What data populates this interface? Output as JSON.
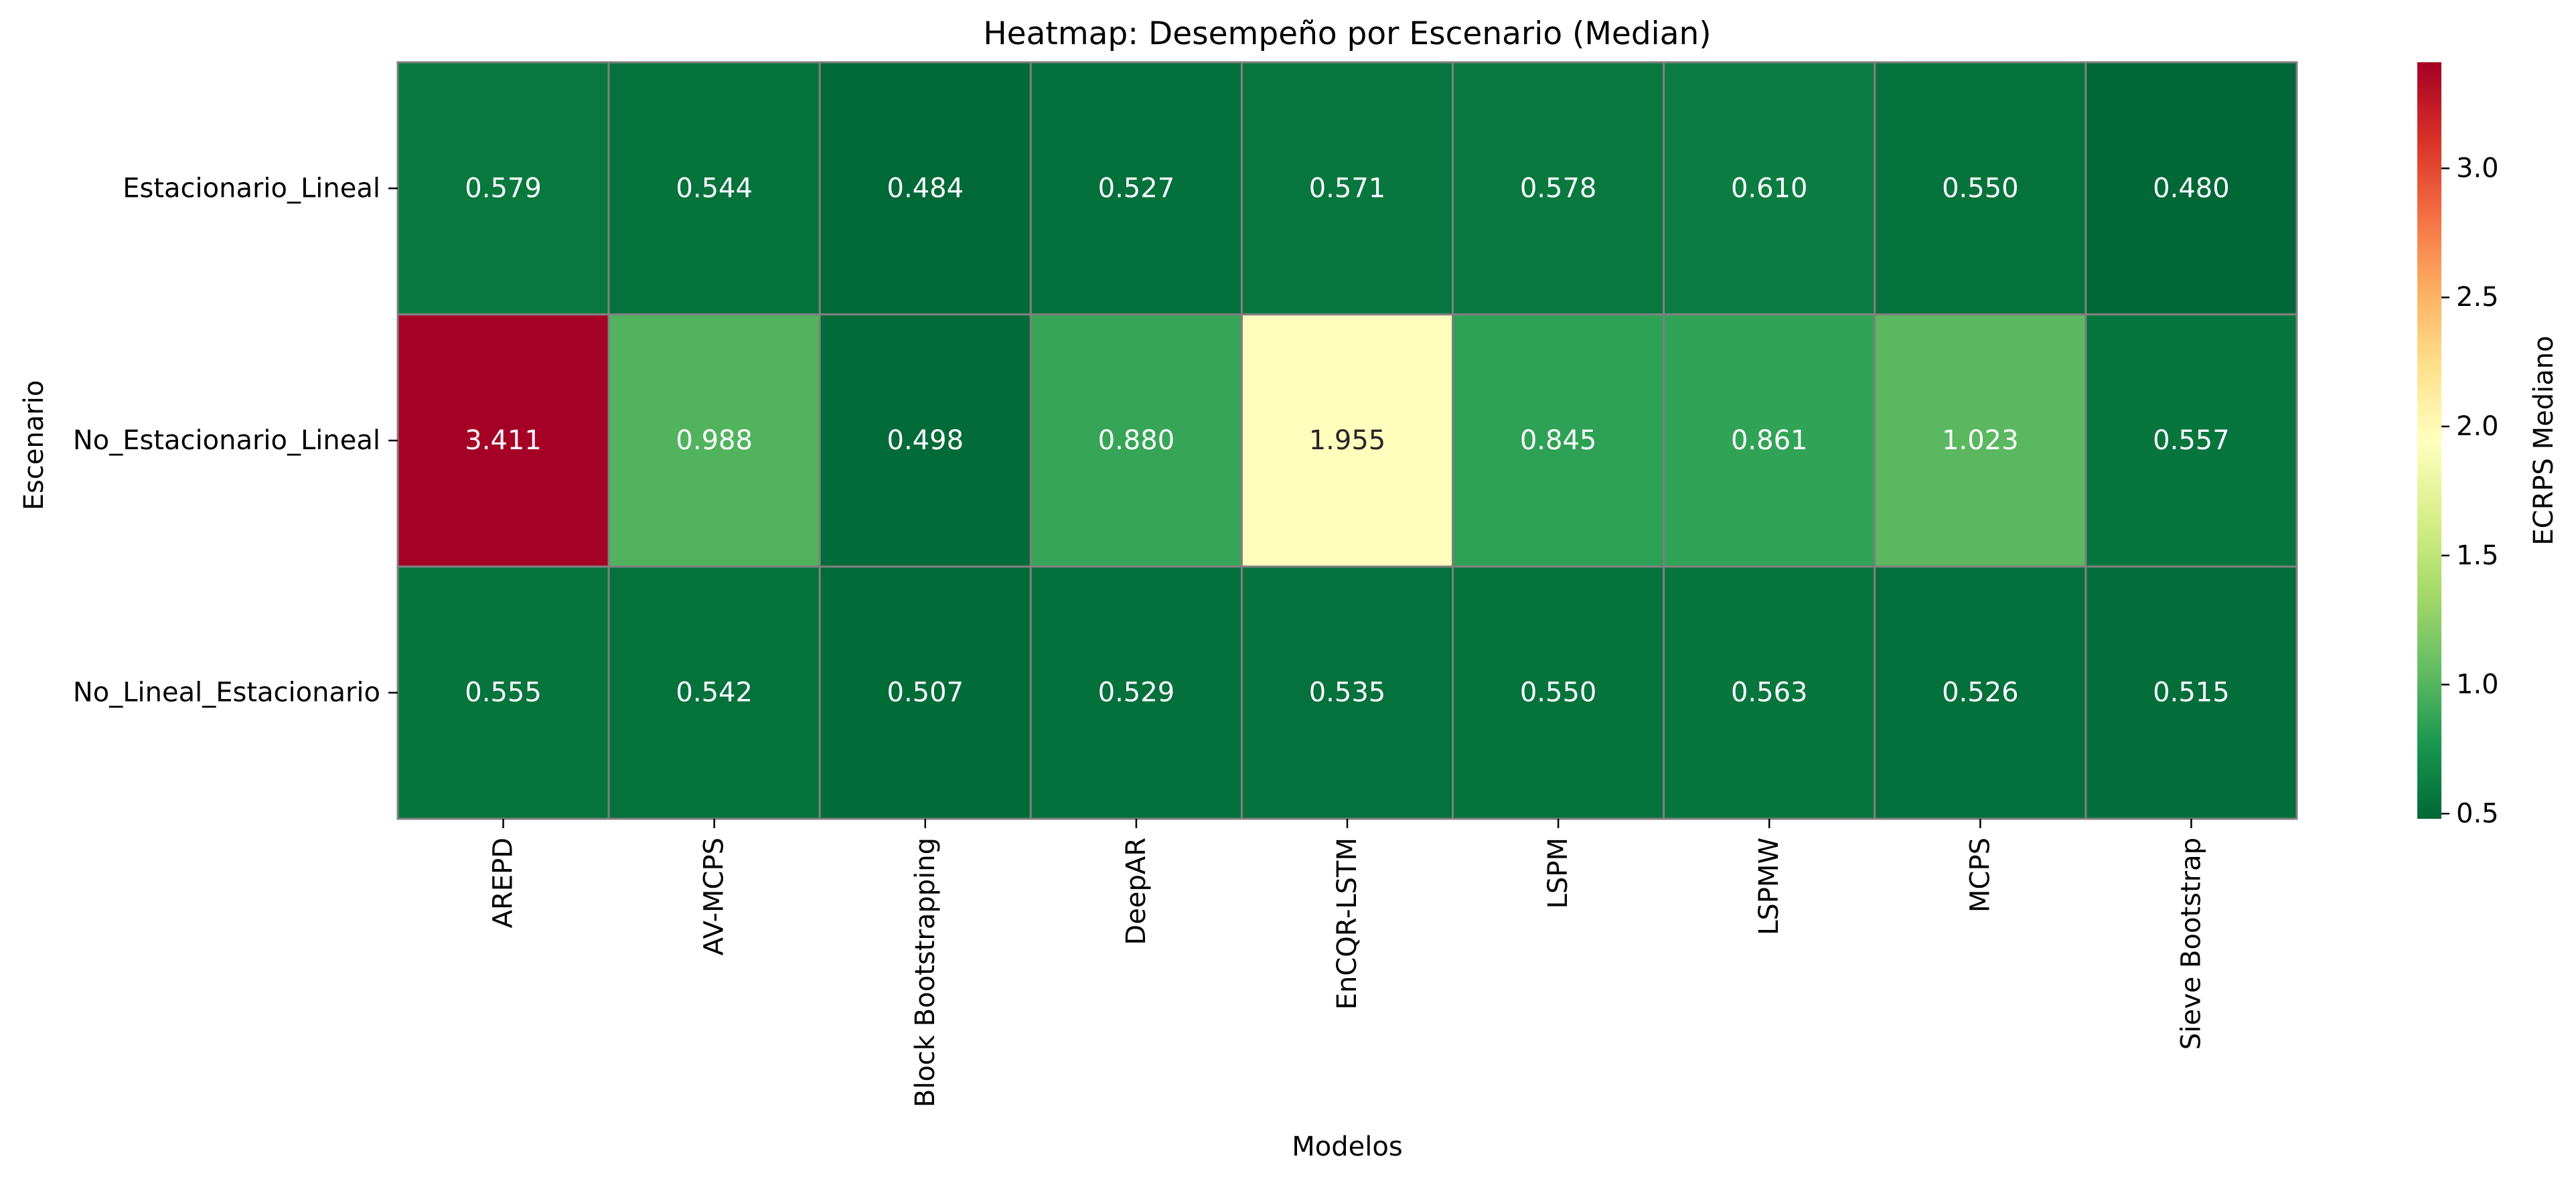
{
  "chart_data": {
    "type": "heatmap",
    "title": "Heatmap: Desempeño por Escenario (Median)",
    "xlabel": "Modelos",
    "ylabel": "Escenario",
    "x": [
      "AREPD",
      "AV-MCPS",
      "Block Bootstrapping",
      "DeepAR",
      "EnCQR-LSTM",
      "LSPM",
      "LSPMW",
      "MCPS",
      "Sieve Bootstrap"
    ],
    "y": [
      "Estacionario_Lineal",
      "No_Estacionario_Lineal",
      "No_Lineal_Estacionario"
    ],
    "values": [
      [
        0.579,
        0.544,
        0.484,
        0.527,
        0.571,
        0.578,
        0.61,
        0.55,
        0.48
      ],
      [
        3.411,
        0.988,
        0.498,
        0.88,
        1.955,
        0.845,
        0.861,
        1.023,
        0.557
      ],
      [
        0.555,
        0.542,
        0.507,
        0.529,
        0.535,
        0.55,
        0.563,
        0.526,
        0.515
      ]
    ],
    "value_format": "0.000",
    "colormap": "RdYlGn_r",
    "colorbar": {
      "label": "ECRPS Mediano",
      "range": [
        0.48,
        3.411
      ],
      "ticks": [
        0.5,
        1.0,
        1.5,
        2.0,
        2.5,
        3.0
      ],
      "tick_labels": [
        "0.5",
        "1.0",
        "1.5",
        "2.0",
        "2.5",
        "3.0"
      ]
    },
    "cell_border_color": "#808080"
  }
}
